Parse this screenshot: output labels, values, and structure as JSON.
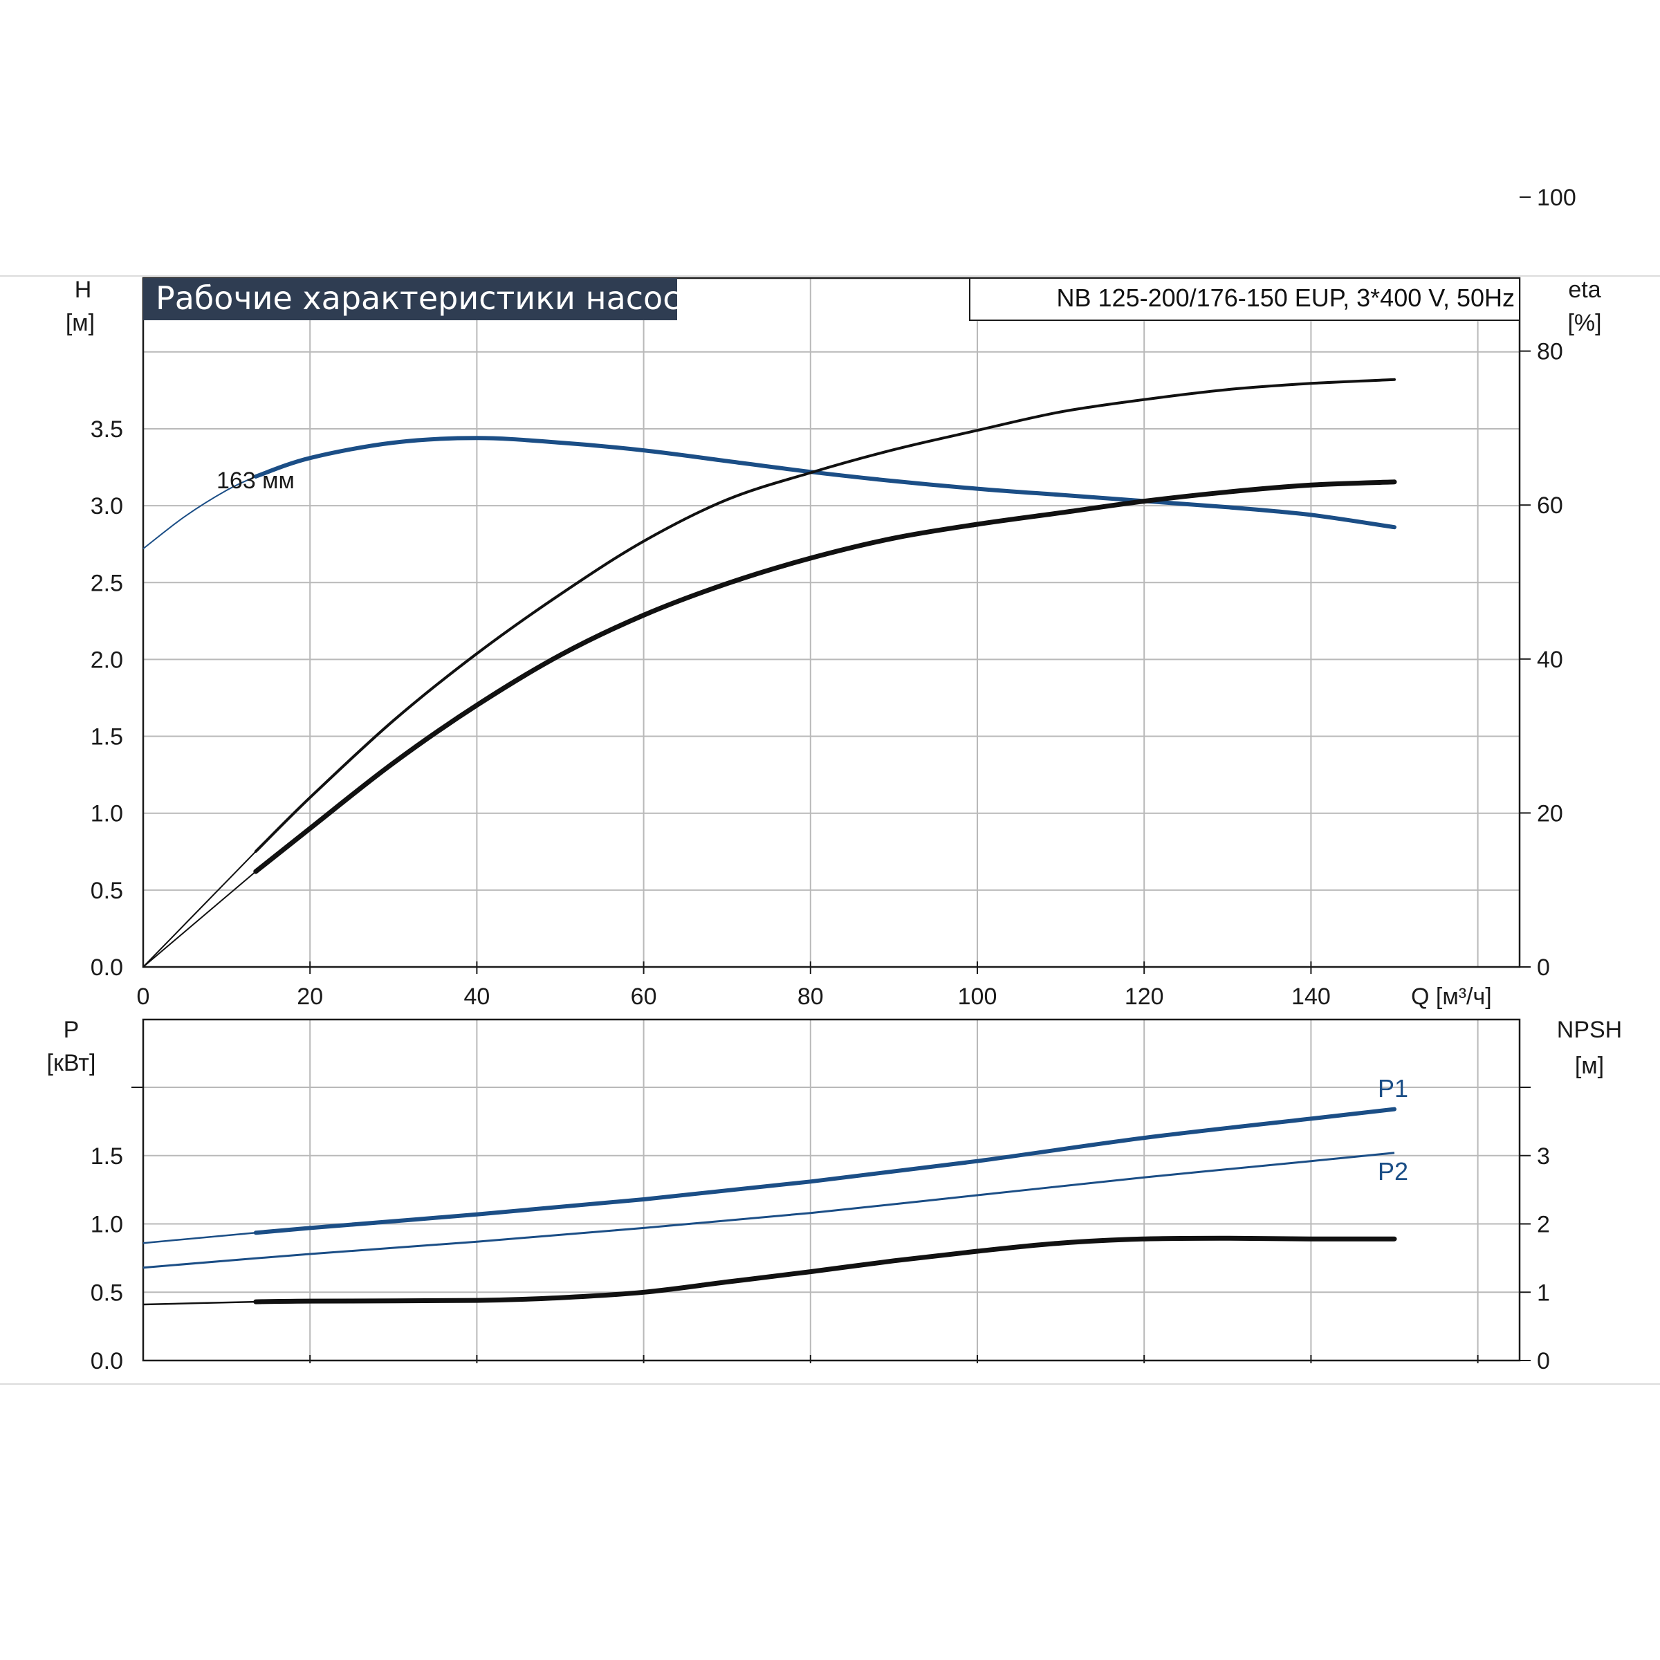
{
  "colors": {
    "blue": "#1b4e86",
    "black": "#111111",
    "grid": "#b9b9b9",
    "title_bg": "#2f3d52"
  },
  "header": {
    "title": "Рабочие характеристики насоса",
    "model": "NB 125-200/176-150 EUP, 3*400 V, 50Hz"
  },
  "chart_data": [
    {
      "type": "line",
      "panel": "top",
      "x_label": "Q [м³/ч]",
      "y_label_left": [
        "H",
        "[м]"
      ],
      "y_label_right": [
        "eta",
        "[%]"
      ],
      "xlim": [
        0,
        160
      ],
      "ylim_left": [
        0,
        4.0
      ],
      "ylim_right": [
        0,
        137
      ],
      "x_ticks": [
        "0",
        "20",
        "40",
        "60",
        "80",
        "100",
        "120",
        "140"
      ],
      "y_ticks_left": [
        "0.0",
        "0.5",
        "1.0",
        "1.5",
        "2.0",
        "2.5",
        "3.0",
        "3.5"
      ],
      "y_ticks_right": [
        "0",
        "20",
        "40",
        "60",
        "80",
        "100"
      ],
      "grid": true,
      "annotation": "163 мм",
      "series": [
        {
          "key": "H",
          "axis": "left",
          "color": "blue",
          "x": [
            0,
            5,
            10,
            13.5,
            20,
            30,
            40,
            50,
            60,
            70,
            80,
            90,
            100,
            110,
            120,
            130,
            140,
            150
          ],
          "y": [
            2.72,
            2.93,
            3.1,
            3.19,
            3.31,
            3.41,
            3.44,
            3.41,
            3.36,
            3.29,
            3.22,
            3.16,
            3.11,
            3.07,
            3.03,
            2.99,
            2.94,
            2.86
          ]
        },
        {
          "key": "eta",
          "axis": "right",
          "color": "black",
          "x": [
            0,
            13.5,
            20,
            30,
            40,
            50,
            60,
            70,
            80,
            90,
            100,
            110,
            120,
            130,
            140,
            150
          ],
          "y": [
            0,
            15.0,
            22.0,
            32.0,
            40.7,
            48.4,
            55.3,
            60.7,
            64.2,
            67.2,
            69.7,
            72.1,
            73.7,
            75.0,
            75.8,
            76.3
          ]
        },
        {
          "key": "eta_total",
          "axis": "right",
          "color": "black",
          "x": [
            0,
            13.5,
            20,
            30,
            40,
            50,
            60,
            70,
            80,
            90,
            100,
            110,
            120,
            130,
            140,
            150
          ],
          "y": [
            0,
            12.4,
            18.0,
            26.5,
            34.0,
            40.5,
            45.7,
            49.8,
            53.1,
            55.7,
            57.5,
            59.0,
            60.5,
            61.7,
            62.6,
            63.0
          ]
        }
      ]
    },
    {
      "type": "line",
      "panel": "bottom",
      "y_label_left": [
        "P",
        "[кВт]"
      ],
      "y_label_right": [
        "NPSH",
        "[м]"
      ],
      "xlim": [
        0,
        160
      ],
      "ylim_left": [
        0,
        2.0
      ],
      "ylim_right": [
        0,
        4.0
      ],
      "y_ticks_left": [
        "0.0",
        "0.5",
        "1.0",
        "1.5"
      ],
      "y_ticks_right": [
        "0",
        "1",
        "2",
        "3"
      ],
      "grid": true,
      "series": [
        {
          "key": "P1",
          "label": "P1",
          "axis": "left",
          "color": "blue",
          "x": [
            0,
            13.5,
            20,
            40,
            60,
            80,
            100,
            120,
            140,
            150
          ],
          "y": [
            0.86,
            0.935,
            0.97,
            1.07,
            1.18,
            1.31,
            1.46,
            1.63,
            1.77,
            1.84
          ]
        },
        {
          "key": "P2",
          "label": "P2",
          "axis": "left",
          "color": "blue",
          "x": [
            0,
            20,
            40,
            60,
            80,
            100,
            120,
            140,
            150
          ],
          "y": [
            0.68,
            0.78,
            0.87,
            0.97,
            1.08,
            1.21,
            1.34,
            1.46,
            1.52
          ]
        },
        {
          "key": "NPSH",
          "axis": "right",
          "color": "black",
          "x": [
            0,
            13.5,
            20,
            40,
            50,
            60,
            70,
            80,
            90,
            100,
            110,
            120,
            130,
            140,
            150
          ],
          "y": [
            0.82,
            0.86,
            0.87,
            0.88,
            0.92,
            1.0,
            1.15,
            1.3,
            1.46,
            1.6,
            1.72,
            1.78,
            1.79,
            1.78,
            1.78
          ]
        }
      ]
    }
  ]
}
